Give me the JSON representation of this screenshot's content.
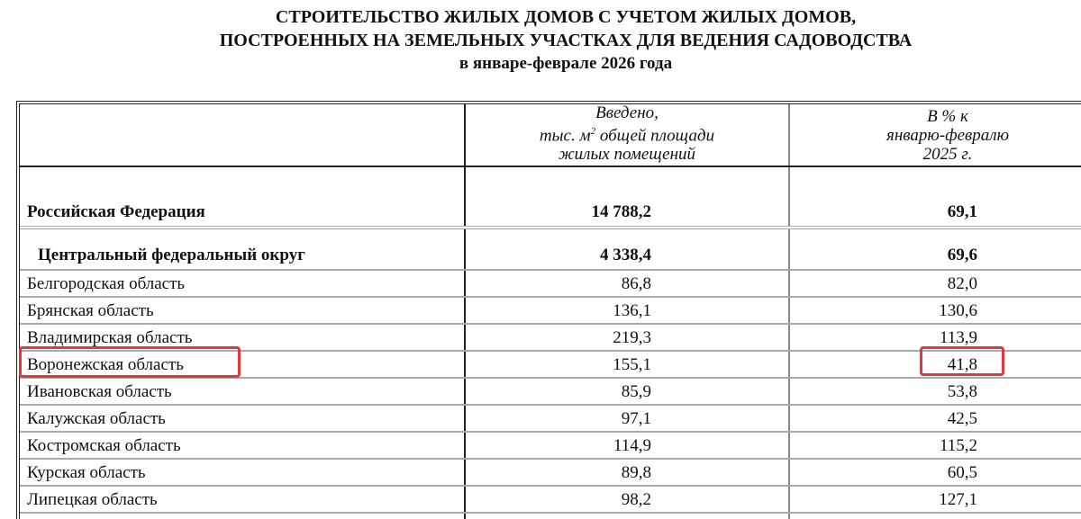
{
  "title": {
    "line1": "СТРОИТЕЛЬСТВО ЖИЛЫХ ДОМОВ С УЧЕТОМ ЖИЛЫХ ДОМОВ,",
    "line2": "ПОСТРОЕННЫХ НА ЗЕМЕЛЬНЫХ УЧАСТКАХ ДЛЯ ВЕДЕНИЯ САДОВОДСТВА",
    "line3": "в январе-феврале 2026 года"
  },
  "header": {
    "col2_l1": "Введено,",
    "col2_l2a": "тыс. м",
    "col2_sup": "2",
    "col2_l2b": " общей площади",
    "col2_l3": "жилых помещений",
    "col3_l1": "В % к",
    "col3_l2": "январю-февралю",
    "col3_l3": "2025 г."
  },
  "rows": [
    {
      "name": "Российская Федерация",
      "built": "14 788,2",
      "pct": "69,1"
    },
    {
      "name": "Центральный федеральный округ",
      "built": "4 338,4",
      "pct": "69,6"
    },
    {
      "name": "Белгородская область",
      "built": "86,8",
      "pct": "82,0"
    },
    {
      "name": "Брянская область",
      "built": "136,1",
      "pct": "130,6"
    },
    {
      "name": "Владимирская область",
      "built": "219,3",
      "pct": "113,9"
    },
    {
      "name": "Воронежская область",
      "built": "155,1",
      "pct": "41,8",
      "highlighted": true
    },
    {
      "name": "Ивановская область",
      "built": "85,9",
      "pct": "53,8"
    },
    {
      "name": "Калужская область",
      "built": "97,1",
      "pct": "42,5"
    },
    {
      "name": "Костромская область",
      "built": "114,9",
      "pct": "115,2"
    },
    {
      "name": "Курская область",
      "built": "89,8",
      "pct": "60,5"
    },
    {
      "name": "Липецкая область",
      "built": "98,2",
      "pct": "127,1"
    }
  ],
  "highlight_color": "#e03a3a"
}
